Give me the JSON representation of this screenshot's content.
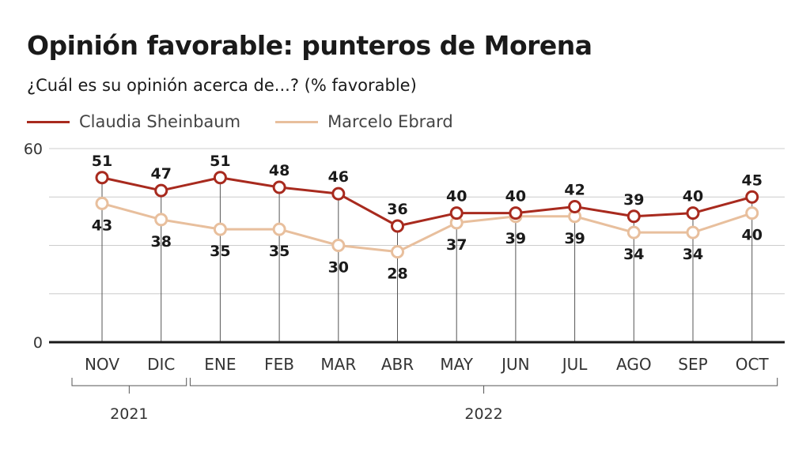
{
  "header": {
    "title": "Opinión favorable: punteros de Morena",
    "subtitle": "¿Cuál es su opinión acerca de...? (% favorable)"
  },
  "colors": {
    "sheinbaum": "#a82a1e",
    "ebrard": "#e8bf9d",
    "grid": "#cccccc",
    "axis": "#1a1a1a",
    "drop_line": "#555555"
  },
  "chart_data": {
    "type": "line",
    "title": "Opinión favorable: punteros de Morena",
    "subtitle": "¿Cuál es su opinión acerca de...? (% favorable)",
    "categories": [
      "NOV",
      "DIC",
      "ENE",
      "FEB",
      "MAR",
      "ABR",
      "MAY",
      "JUN",
      "JUL",
      "AGO",
      "SEP",
      "OCT"
    ],
    "series": [
      {
        "name": "Claudia Sheinbaum",
        "values": [
          51,
          47,
          51,
          48,
          46,
          36,
          40,
          40,
          42,
          39,
          40,
          45
        ]
      },
      {
        "name": "Marcelo Ebrard",
        "values": [
          43,
          38,
          35,
          35,
          30,
          28,
          37,
          39,
          39,
          34,
          34,
          40
        ]
      }
    ],
    "year_groups": [
      {
        "label": "2021",
        "from": "NOV",
        "to": "DIC"
      },
      {
        "label": "2022",
        "from": "ENE",
        "to": "OCT"
      }
    ],
    "ylim": [
      0,
      60
    ],
    "yticks": [
      0,
      60
    ],
    "grid": true,
    "legend": "top-left"
  }
}
